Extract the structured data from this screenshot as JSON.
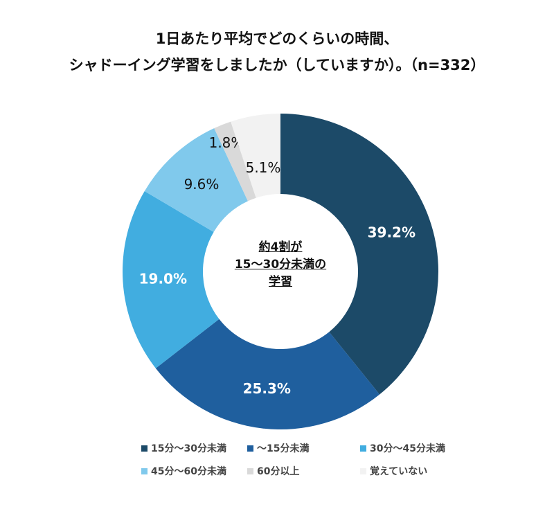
{
  "chart_data": {
    "type": "pie",
    "donut": true,
    "title_lines": [
      "1日あたり平均でどのくらいの時間、",
      "シャドーイング学習をしましたか（していますか）。（n=332）"
    ],
    "categories": [
      "15分～30分未満",
      "～15分未満",
      "30分～45分未満",
      "45分～60分未満",
      "60分以上",
      "覚えていない"
    ],
    "values": [
      39.2,
      25.3,
      19.0,
      9.6,
      1.8,
      5.1
    ],
    "data_labels": [
      "39.2%",
      "25.3%",
      "19.0%",
      "9.6%",
      "1.8%",
      "5.1%"
    ],
    "colors": [
      "#1c4a68",
      "#1f5f9e",
      "#41ade0",
      "#80c9ec",
      "#d9d9d9",
      "#f2f2f2"
    ],
    "label_colors": [
      "#ffffff",
      "#ffffff",
      "#ffffff",
      "#111111",
      "#111111",
      "#111111"
    ],
    "legend_position": "bottom",
    "center_text": [
      "約4割が",
      "15～30分未満の",
      "学習"
    ]
  }
}
